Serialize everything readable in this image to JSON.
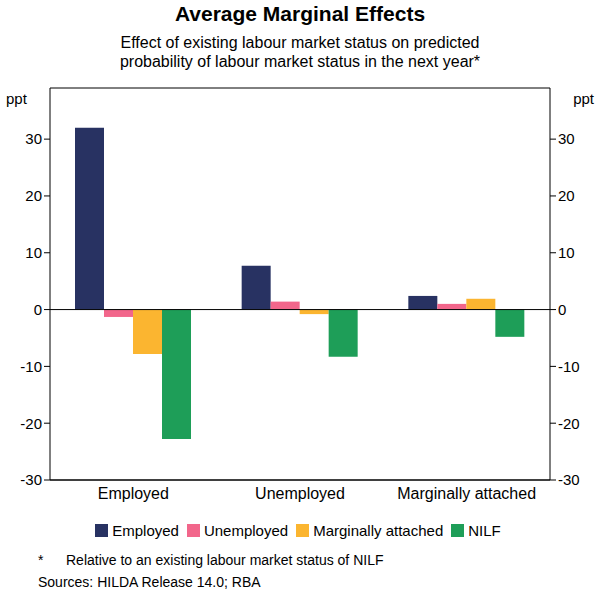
{
  "chart_data": {
    "type": "bar",
    "title": "Average Marginal Effects",
    "subtitle": [
      "Effect of existing labour market status on predicted",
      "probability of labour market status in the next year*"
    ],
    "y_label": "ppt",
    "categories": [
      "Employed",
      "Unemployed",
      "Marginally attached"
    ],
    "series": [
      {
        "name": "Employed",
        "color": "#283262",
        "values": [
          32,
          7.7,
          2.4
        ]
      },
      {
        "name": "Unemployed",
        "color": "#f2668b",
        "values": [
          -1.3,
          1.4,
          1.0
        ]
      },
      {
        "name": "Marginally attached",
        "color": "#fbb530",
        "values": [
          -7.8,
          -0.8,
          1.9
        ]
      },
      {
        "name": "NILF",
        "color": "#1e9e58",
        "values": [
          -22.8,
          -8.3,
          -4.8
        ]
      }
    ],
    "ylim": [
      -30,
      39
    ],
    "yticks": [
      -30,
      -20,
      -10,
      0,
      10,
      20,
      30
    ],
    "grid": false,
    "legend": "bottom",
    "footnote": {
      "marker": "*",
      "text": "Relative to an existing labour market status of NILF"
    },
    "source": "Sources: HILDA Release 14.0; RBA"
  }
}
